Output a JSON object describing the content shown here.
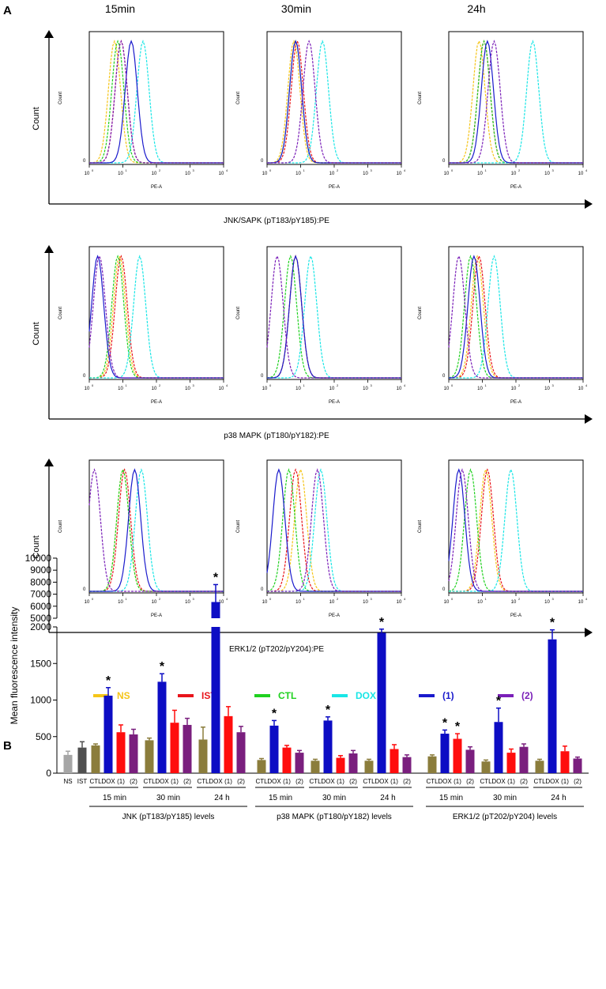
{
  "panel_a_label": "A",
  "panel_b_label": "B",
  "time_columns": [
    "15min",
    "30min",
    "24h"
  ],
  "histogram_axis": {
    "count_label": "Count",
    "pe_label": "PE-A",
    "zero_label": "0",
    "tick_labels": [
      "10",
      "10",
      "10",
      "10",
      "10"
    ],
    "tick_exps": [
      "0",
      "1",
      "2",
      "3",
      "4"
    ]
  },
  "row_labels": [
    "JNK/SAPK (pT183/pY185):PE",
    "p38 MAPK (pT180/pY182):PE",
    "ERK1/2 (pT202/pY204):PE"
  ],
  "legend": [
    {
      "label": "NS",
      "color": "#F5C518"
    },
    {
      "label": "IST",
      "color": "#E8141B"
    },
    {
      "label": "CTL",
      "color": "#1FD11F"
    },
    {
      "label": "DOX",
      "color": "#19E6E6"
    },
    {
      "label": "(1)",
      "color": "#1A1ACC"
    },
    {
      "label": "(2)",
      "color": "#7A1FB8"
    }
  ],
  "histogram_peaks": [
    [
      {
        "NS": 0.75,
        "IST": 0.95,
        "CTL": 0.85,
        "DOX": 1.6,
        "1": 1.25,
        "2": 0.95
      },
      {
        "NS": 0.8,
        "IST": 0.9,
        "CTL": 0.85,
        "DOX": 1.65,
        "1": 0.85,
        "2": 1.25
      },
      {
        "NS": 0.9,
        "IST": 1.05,
        "CTL": 1.05,
        "DOX": 2.5,
        "1": 1.15,
        "2": 1.35
      }
    ],
    [
      {
        "NS": 0.9,
        "IST": 0.95,
        "CTL": 0.85,
        "DOX": 1.5,
        "1": 0.25,
        "2": 0.3
      },
      {
        "NS": 0.85,
        "IST": 0.85,
        "CTL": 0.7,
        "DOX": 1.3,
        "1": 0.85,
        "2": 0.3
      },
      {
        "NS": 0.85,
        "IST": 0.9,
        "CTL": 0.65,
        "DOX": 1.35,
        "1": 0.75,
        "2": 0.3
      }
    ],
    [
      {
        "NS": 1.0,
        "IST": 1.05,
        "CTL": 1.0,
        "DOX": 1.55,
        "1": 1.35,
        "2": 0.15
      },
      {
        "NS": 1.0,
        "IST": 0.85,
        "CTL": 0.65,
        "DOX": 1.6,
        "1": 0.35,
        "2": 1.5
      },
      {
        "NS": 1.1,
        "IST": 1.15,
        "CTL": 0.65,
        "DOX": 1.85,
        "1": 0.3,
        "2": 0.4
      }
    ]
  ],
  "chart_data": {
    "type": "bar",
    "title": "",
    "ylabel": "Mean fluorescence intensity",
    "ylim_lower": [
      0,
      2000
    ],
    "ylim_upper": [
      5000,
      10000
    ],
    "yticks_lower": [
      "0",
      "500",
      "1000",
      "1500",
      "2000"
    ],
    "yticks_upper": [
      "5000",
      "6000",
      "7000",
      "8000",
      "9000",
      "10000"
    ],
    "controls": [
      {
        "label": "NS",
        "value": 250,
        "error": 50,
        "color": "#A6A6A6"
      },
      {
        "label": "IST",
        "value": 350,
        "error": 80,
        "color": "#505050"
      }
    ],
    "groups": [
      {
        "name": "JNK (pT183/pY185) levels",
        "times": [
          {
            "time": "15 min",
            "values": [
              380,
              1060,
              560,
              530
            ],
            "errors": [
              20,
              110,
              100,
              70
            ]
          },
          {
            "time": "30 min",
            "values": [
              450,
              1250,
              690,
              660
            ],
            "errors": [
              30,
              110,
              170,
              90
            ]
          },
          {
            "time": "24 h",
            "values": [
              460,
              6350,
              780,
              560
            ],
            "errors": [
              170,
              1450,
              130,
              80
            ]
          }
        ]
      },
      {
        "name": "p38 MAPK (pT180/pY182) levels",
        "times": [
          {
            "time": "15 min",
            "values": [
              180,
              650,
              350,
              280
            ],
            "errors": [
              20,
              70,
              30,
              30
            ]
          },
          {
            "time": "30 min",
            "values": [
              170,
              720,
              210,
              270
            ],
            "errors": [
              20,
              50,
              30,
              40
            ]
          },
          {
            "time": "24 h",
            "values": [
              170,
              1920,
              330,
              220
            ],
            "errors": [
              20,
              50,
              60,
              30
            ]
          }
        ]
      },
      {
        "name": "ERK1/2 (pT202/pY204) levels",
        "times": [
          {
            "time": "15 min",
            "values": [
              230,
              540,
              470,
              320
            ],
            "errors": [
              20,
              50,
              70,
              40
            ]
          },
          {
            "time": "30 min",
            "values": [
              160,
              700,
              280,
              360
            ],
            "errors": [
              20,
              190,
              50,
              40
            ]
          },
          {
            "time": "24 h",
            "values": [
              170,
              1830,
              300,
              200
            ],
            "errors": [
              20,
              130,
              70,
              20
            ]
          }
        ]
      }
    ],
    "series": [
      "CTL",
      "DOX",
      "(1)",
      "(2)"
    ],
    "series_colors": [
      "#8B7D3C",
      "#0D0DC4",
      "#FF0D0D",
      "#7A1F7E"
    ],
    "significant": [
      "DOX",
      "DOX(1)_ERK_15min"
    ],
    "significance_marks": [
      {
        "group": 0,
        "time": 0,
        "bar": 1
      },
      {
        "group": 0,
        "time": 1,
        "bar": 1
      },
      {
        "group": 0,
        "time": 2,
        "bar": 1
      },
      {
        "group": 1,
        "time": 0,
        "bar": 1
      },
      {
        "group": 1,
        "time": 1,
        "bar": 1
      },
      {
        "group": 1,
        "time": 2,
        "bar": 1
      },
      {
        "group": 2,
        "time": 0,
        "bar": 1
      },
      {
        "group": 2,
        "time": 0,
        "bar": 2
      },
      {
        "group": 2,
        "time": 1,
        "bar": 1
      },
      {
        "group": 2,
        "time": 2,
        "bar": 1
      }
    ],
    "star_symbol": "*",
    "x_labels": [
      "CTL",
      "DOX",
      "(1)",
      "(2)"
    ]
  }
}
